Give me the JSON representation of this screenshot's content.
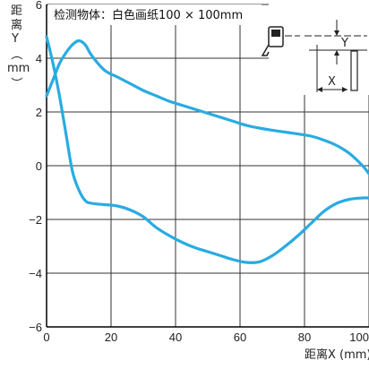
{
  "chart_data": {
    "type": "line",
    "title": "检测物体：白色画纸100 × 100mm",
    "xlabel": "距离X (mm)",
    "ylabel_chars": [
      "距",
      "离",
      "Y",
      "（",
      "mm",
      "）"
    ],
    "xlim": [
      0,
      100
    ],
    "ylim": [
      -6,
      6
    ],
    "x_ticks": [
      "0",
      "20",
      "40",
      "60",
      "80",
      "100"
    ],
    "y_ticks": [
      "6",
      "4",
      "2",
      "0",
      "−2",
      "−4",
      "−6"
    ],
    "grid": true,
    "diagram_labels": {
      "y": "Y",
      "x": "X"
    },
    "series": [
      {
        "points": [
          [
            0,
            4.8
          ],
          [
            2,
            3.8
          ],
          [
            4,
            2.6
          ],
          [
            6,
            1.2
          ],
          [
            8,
            -0.2
          ],
          [
            10,
            -0.9
          ],
          [
            12,
            -1.3
          ],
          [
            14,
            -1.4
          ],
          [
            18,
            -1.45
          ],
          [
            22,
            -1.5
          ],
          [
            26,
            -1.65
          ],
          [
            30,
            -1.9
          ],
          [
            34,
            -2.3
          ],
          [
            38,
            -2.6
          ],
          [
            42,
            -2.85
          ],
          [
            46,
            -3.05
          ],
          [
            50,
            -3.2
          ],
          [
            54,
            -3.35
          ],
          [
            58,
            -3.5
          ],
          [
            62,
            -3.6
          ],
          [
            66,
            -3.58
          ],
          [
            70,
            -3.35
          ],
          [
            74,
            -3.0
          ],
          [
            78,
            -2.6
          ],
          [
            82,
            -2.15
          ],
          [
            86,
            -1.7
          ],
          [
            90,
            -1.4
          ],
          [
            94,
            -1.25
          ],
          [
            98,
            -1.2
          ],
          [
            100,
            -1.2
          ]
        ]
      },
      {
        "points": [
          [
            0,
            2.6
          ],
          [
            2,
            3.2
          ],
          [
            4,
            3.8
          ],
          [
            6,
            4.2
          ],
          [
            8,
            4.5
          ],
          [
            10,
            4.65
          ],
          [
            12,
            4.5
          ],
          [
            14,
            4.1
          ],
          [
            18,
            3.55
          ],
          [
            22,
            3.3
          ],
          [
            26,
            3.05
          ],
          [
            30,
            2.8
          ],
          [
            34,
            2.6
          ],
          [
            38,
            2.4
          ],
          [
            42,
            2.25
          ],
          [
            46,
            2.1
          ],
          [
            50,
            1.95
          ],
          [
            54,
            1.8
          ],
          [
            58,
            1.65
          ],
          [
            62,
            1.5
          ],
          [
            66,
            1.4
          ],
          [
            70,
            1.32
          ],
          [
            74,
            1.25
          ],
          [
            78,
            1.18
          ],
          [
            82,
            1.1
          ],
          [
            86,
            0.95
          ],
          [
            90,
            0.75
          ],
          [
            94,
            0.45
          ],
          [
            98,
            0.0
          ],
          [
            100,
            -0.3
          ]
        ]
      }
    ],
    "line_color": "#29abe2"
  }
}
